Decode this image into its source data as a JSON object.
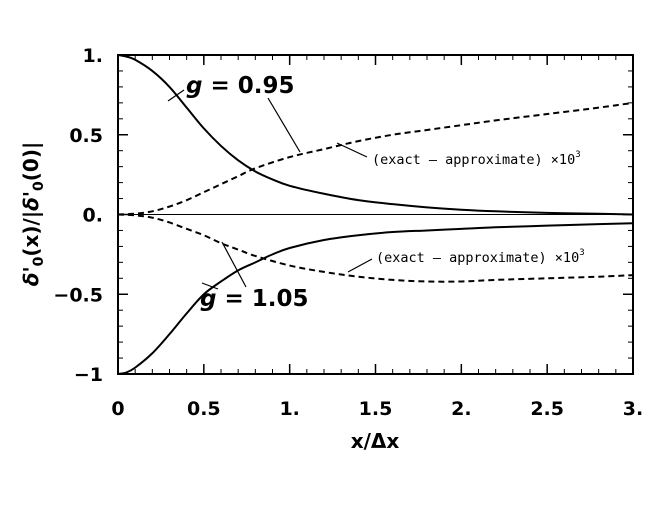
{
  "chart_data": {
    "type": "line",
    "title": "",
    "xlabel": "x/Δx",
    "ylabel": {
      "delta": "δ'",
      "sub": "0",
      "numerator_arg": "(x)",
      "separator": "/|",
      "denominator_arg": "(0)",
      "close": "|"
    },
    "xlim": [
      0,
      3
    ],
    "ylim": [
      -1,
      1
    ],
    "x_ticks": [
      0,
      0.5,
      1,
      1.5,
      2,
      2.5,
      3
    ],
    "x_tick_labels": [
      "0",
      "0.5",
      "1.",
      "1.5",
      "2.",
      "2.5",
      "3."
    ],
    "y_ticks": [
      -1,
      -0.5,
      0,
      0.5,
      1
    ],
    "y_tick_labels": [
      "−1",
      "−0.5",
      "0.",
      "0.5",
      "1."
    ],
    "zero_line": true,
    "grid": false,
    "series": [
      {
        "name": "g = 0.95",
        "style": "solid",
        "x": [
          0,
          0.05,
          0.1,
          0.2,
          0.3,
          0.4,
          0.5,
          0.6,
          0.7,
          0.8,
          0.9,
          1.0,
          1.2,
          1.4,
          1.6,
          1.8,
          2.0,
          2.2,
          2.5,
          2.8,
          3.0
        ],
        "values": [
          1.0,
          0.99,
          0.97,
          0.9,
          0.8,
          0.67,
          0.54,
          0.43,
          0.34,
          0.27,
          0.22,
          0.18,
          0.13,
          0.09,
          0.065,
          0.045,
          0.03,
          0.02,
          0.01,
          0.005,
          0.0
        ]
      },
      {
        "name": "g = 1.05",
        "style": "solid",
        "x": [
          0,
          0.05,
          0.1,
          0.2,
          0.3,
          0.4,
          0.5,
          0.6,
          0.7,
          0.8,
          0.9,
          1.0,
          1.2,
          1.4,
          1.6,
          1.8,
          2.0,
          2.2,
          2.5,
          2.8,
          3.0
        ],
        "values": [
          -1.0,
          -0.99,
          -0.96,
          -0.87,
          -0.75,
          -0.62,
          -0.5,
          -0.42,
          -0.35,
          -0.3,
          -0.25,
          -0.21,
          -0.16,
          -0.13,
          -0.11,
          -0.1,
          -0.09,
          -0.08,
          -0.07,
          -0.06,
          -0.055
        ]
      },
      {
        "name": "(exact – approximate) ×10³, g = 0.95",
        "style": "dashed",
        "x": [
          0,
          0.1,
          0.2,
          0.3,
          0.4,
          0.5,
          0.6,
          0.7,
          0.8,
          1.0,
          1.2,
          1.4,
          1.6,
          1.8,
          2.0,
          2.2,
          2.5,
          2.8,
          3.0
        ],
        "values": [
          0.0,
          0.005,
          0.02,
          0.05,
          0.09,
          0.14,
          0.19,
          0.24,
          0.29,
          0.36,
          0.41,
          0.46,
          0.5,
          0.53,
          0.56,
          0.59,
          0.63,
          0.67,
          0.7
        ]
      },
      {
        "name": "(exact – approximate) ×10³, g = 1.05",
        "style": "dashed",
        "x": [
          0,
          0.1,
          0.2,
          0.3,
          0.4,
          0.5,
          0.6,
          0.7,
          0.8,
          1.0,
          1.2,
          1.4,
          1.6,
          1.8,
          2.0,
          2.2,
          2.5,
          2.8,
          3.0
        ],
        "values": [
          0.0,
          -0.005,
          -0.02,
          -0.05,
          -0.09,
          -0.13,
          -0.18,
          -0.22,
          -0.26,
          -0.32,
          -0.36,
          -0.39,
          -0.41,
          -0.42,
          -0.42,
          -0.41,
          -0.4,
          -0.39,
          -0.38
        ]
      }
    ],
    "annotations": {
      "g_low": {
        "prefix": "g",
        "text": " = 0.95"
      },
      "g_high": {
        "prefix": "g",
        "text": " = 1.05"
      },
      "note_upper": {
        "text": "(exact – approximate) ×10",
        "sup": "3"
      },
      "note_lower": {
        "text": "(exact – approximate) ×10",
        "sup": "3"
      }
    }
  }
}
